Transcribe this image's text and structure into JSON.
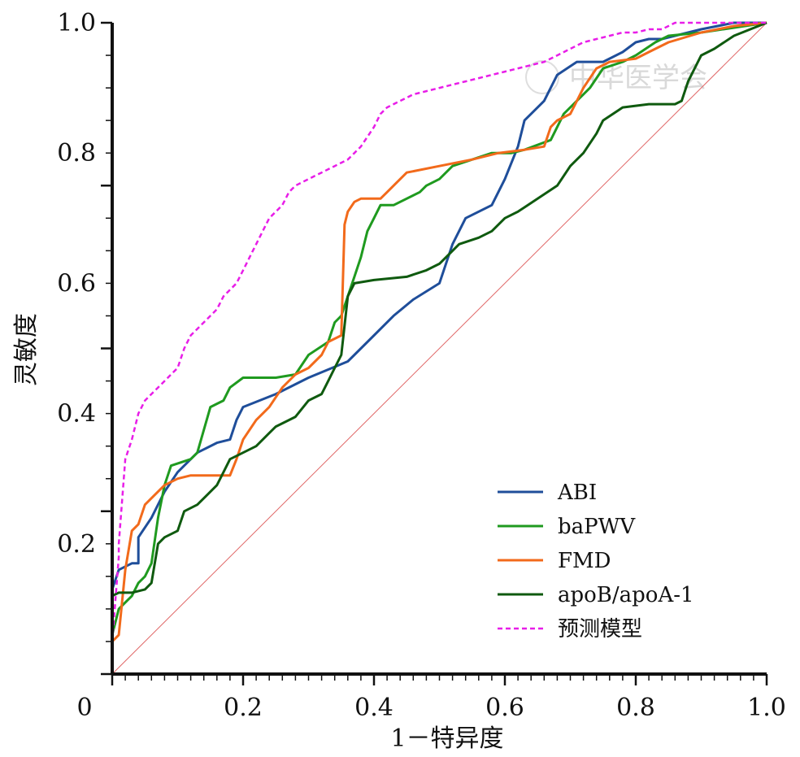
{
  "chart_data": {
    "type": "line",
    "title": "",
    "xlabel": "1－特异度",
    "ylabel": "灵敏度",
    "xlim": [
      0,
      1
    ],
    "ylim": [
      0,
      1
    ],
    "x_ticks": [
      "0",
      "0.2",
      "0.4",
      "0.6",
      "0.8",
      "1.0"
    ],
    "y_ticks": [
      "0.2",
      "0.4",
      "0.6",
      "0.8",
      "1.0"
    ],
    "grid": false,
    "legend_position": "bottom-right",
    "watermark": "中华医学会",
    "reference_line": {
      "x": [
        0,
        1
      ],
      "y": [
        0,
        1
      ],
      "color": "#e06666"
    },
    "series": [
      {
        "name": "ABI",
        "color": "#1f4e9a",
        "dash": "solid",
        "x": [
          0,
          0,
          0.01,
          0.02,
          0.03,
          0.04,
          0.04,
          0.06,
          0.08,
          0.1,
          0.12,
          0.13,
          0.14,
          0.16,
          0.18,
          0.19,
          0.2,
          0.25,
          0.3,
          0.36,
          0.4,
          0.43,
          0.46,
          0.5,
          0.52,
          0.54,
          0.58,
          0.6,
          0.62,
          0.63,
          0.64,
          0.66,
          0.68,
          0.71,
          0.73,
          0.75,
          0.78,
          0.8,
          0.82,
          0.84,
          0.86,
          0.9,
          0.95,
          1.0
        ],
        "y": [
          0,
          0.13,
          0.16,
          0.165,
          0.17,
          0.17,
          0.21,
          0.24,
          0.28,
          0.31,
          0.33,
          0.34,
          0.345,
          0.355,
          0.36,
          0.39,
          0.41,
          0.43,
          0.455,
          0.48,
          0.52,
          0.55,
          0.575,
          0.6,
          0.66,
          0.7,
          0.72,
          0.76,
          0.81,
          0.85,
          0.86,
          0.88,
          0.92,
          0.94,
          0.94,
          0.94,
          0.955,
          0.97,
          0.975,
          0.975,
          0.98,
          0.99,
          1.0,
          1.0
        ]
      },
      {
        "name": "baPWV",
        "color": "#1f9a1f",
        "dash": "solid",
        "x": [
          0,
          0,
          0.01,
          0.02,
          0.03,
          0.04,
          0.05,
          0.06,
          0.07,
          0.08,
          0.09,
          0.12,
          0.13,
          0.15,
          0.16,
          0.17,
          0.18,
          0.2,
          0.25,
          0.28,
          0.3,
          0.33,
          0.34,
          0.35,
          0.36,
          0.37,
          0.38,
          0.39,
          0.4,
          0.41,
          0.43,
          0.47,
          0.48,
          0.5,
          0.52,
          0.55,
          0.58,
          0.61,
          0.63,
          0.67,
          0.69,
          0.71,
          0.72,
          0.73,
          0.75,
          0.78,
          0.8,
          0.83,
          0.85,
          0.9,
          1.0
        ],
        "y": [
          0,
          0.06,
          0.1,
          0.11,
          0.12,
          0.14,
          0.15,
          0.17,
          0.24,
          0.29,
          0.32,
          0.33,
          0.34,
          0.41,
          0.415,
          0.42,
          0.44,
          0.455,
          0.455,
          0.46,
          0.49,
          0.51,
          0.54,
          0.55,
          0.58,
          0.61,
          0.64,
          0.68,
          0.7,
          0.72,
          0.72,
          0.74,
          0.75,
          0.76,
          0.78,
          0.79,
          0.8,
          0.8,
          0.805,
          0.82,
          0.86,
          0.88,
          0.89,
          0.9,
          0.93,
          0.94,
          0.95,
          0.97,
          0.98,
          0.985,
          1.0
        ]
      },
      {
        "name": "FMD",
        "color": "#f26a1b",
        "dash": "solid",
        "x": [
          0,
          0,
          0.01,
          0.02,
          0.03,
          0.04,
          0.05,
          0.06,
          0.08,
          0.1,
          0.12,
          0.15,
          0.18,
          0.19,
          0.2,
          0.22,
          0.24,
          0.26,
          0.28,
          0.3,
          0.32,
          0.33,
          0.35,
          0.355,
          0.36,
          0.37,
          0.38,
          0.41,
          0.42,
          0.43,
          0.45,
          0.5,
          0.55,
          0.59,
          0.63,
          0.66,
          0.67,
          0.68,
          0.7,
          0.72,
          0.74,
          0.76,
          0.8,
          0.82,
          0.85,
          0.9,
          0.95,
          1.0
        ],
        "y": [
          0,
          0.05,
          0.06,
          0.16,
          0.22,
          0.23,
          0.26,
          0.27,
          0.29,
          0.3,
          0.305,
          0.305,
          0.305,
          0.33,
          0.36,
          0.39,
          0.41,
          0.44,
          0.46,
          0.47,
          0.49,
          0.51,
          0.52,
          0.69,
          0.71,
          0.725,
          0.73,
          0.73,
          0.74,
          0.75,
          0.77,
          0.78,
          0.79,
          0.8,
          0.805,
          0.81,
          0.84,
          0.85,
          0.86,
          0.9,
          0.93,
          0.94,
          0.945,
          0.955,
          0.97,
          0.985,
          0.995,
          1.0
        ]
      },
      {
        "name": "apoB/apoA-1",
        "color": "#0f5a0f",
        "dash": "solid",
        "x": [
          0,
          0,
          0.01,
          0.02,
          0.03,
          0.05,
          0.06,
          0.07,
          0.08,
          0.1,
          0.11,
          0.13,
          0.15,
          0.16,
          0.17,
          0.18,
          0.2,
          0.22,
          0.24,
          0.25,
          0.27,
          0.28,
          0.3,
          0.32,
          0.33,
          0.34,
          0.35,
          0.36,
          0.37,
          0.4,
          0.45,
          0.48,
          0.5,
          0.52,
          0.53,
          0.56,
          0.58,
          0.6,
          0.62,
          0.65,
          0.68,
          0.7,
          0.72,
          0.74,
          0.75,
          0.78,
          0.82,
          0.86,
          0.87,
          0.88,
          0.9,
          0.92,
          0.95,
          1.0
        ],
        "y": [
          0,
          0.12,
          0.125,
          0.125,
          0.125,
          0.13,
          0.14,
          0.2,
          0.21,
          0.22,
          0.25,
          0.26,
          0.28,
          0.29,
          0.31,
          0.33,
          0.34,
          0.35,
          0.37,
          0.38,
          0.39,
          0.395,
          0.42,
          0.43,
          0.45,
          0.47,
          0.49,
          0.58,
          0.6,
          0.605,
          0.61,
          0.62,
          0.63,
          0.65,
          0.66,
          0.67,
          0.68,
          0.7,
          0.71,
          0.73,
          0.75,
          0.78,
          0.8,
          0.83,
          0.85,
          0.87,
          0.875,
          0.875,
          0.88,
          0.91,
          0.95,
          0.96,
          0.98,
          1.0
        ]
      },
      {
        "name": "预测模型",
        "color": "#e81ee8",
        "dash": "dashed",
        "x": [
          0,
          0,
          0.01,
          0.01,
          0.02,
          0.03,
          0.04,
          0.05,
          0.06,
          0.07,
          0.08,
          0.09,
          0.1,
          0.11,
          0.12,
          0.13,
          0.14,
          0.15,
          0.16,
          0.17,
          0.18,
          0.19,
          0.2,
          0.21,
          0.22,
          0.23,
          0.24,
          0.25,
          0.26,
          0.27,
          0.28,
          0.3,
          0.32,
          0.34,
          0.36,
          0.37,
          0.38,
          0.4,
          0.41,
          0.42,
          0.43,
          0.44,
          0.45,
          0.46,
          0.48,
          0.5,
          0.52,
          0.54,
          0.56,
          0.58,
          0.6,
          0.62,
          0.64,
          0.66,
          0.68,
          0.7,
          0.72,
          0.74,
          0.76,
          0.78,
          0.8,
          0.82,
          0.84,
          0.86,
          0.9,
          0.95,
          1.0
        ],
        "y": [
          0,
          0.05,
          0.18,
          0.2,
          0.33,
          0.36,
          0.4,
          0.42,
          0.43,
          0.44,
          0.45,
          0.46,
          0.47,
          0.5,
          0.52,
          0.53,
          0.54,
          0.55,
          0.56,
          0.58,
          0.59,
          0.6,
          0.62,
          0.64,
          0.66,
          0.68,
          0.7,
          0.71,
          0.72,
          0.74,
          0.75,
          0.76,
          0.77,
          0.78,
          0.79,
          0.8,
          0.81,
          0.84,
          0.86,
          0.87,
          0.875,
          0.88,
          0.885,
          0.89,
          0.895,
          0.9,
          0.905,
          0.91,
          0.915,
          0.92,
          0.925,
          0.93,
          0.935,
          0.94,
          0.95,
          0.96,
          0.97,
          0.975,
          0.98,
          0.985,
          0.985,
          0.99,
          0.99,
          1.0,
          1.0,
          1.0,
          1.0
        ]
      }
    ]
  }
}
